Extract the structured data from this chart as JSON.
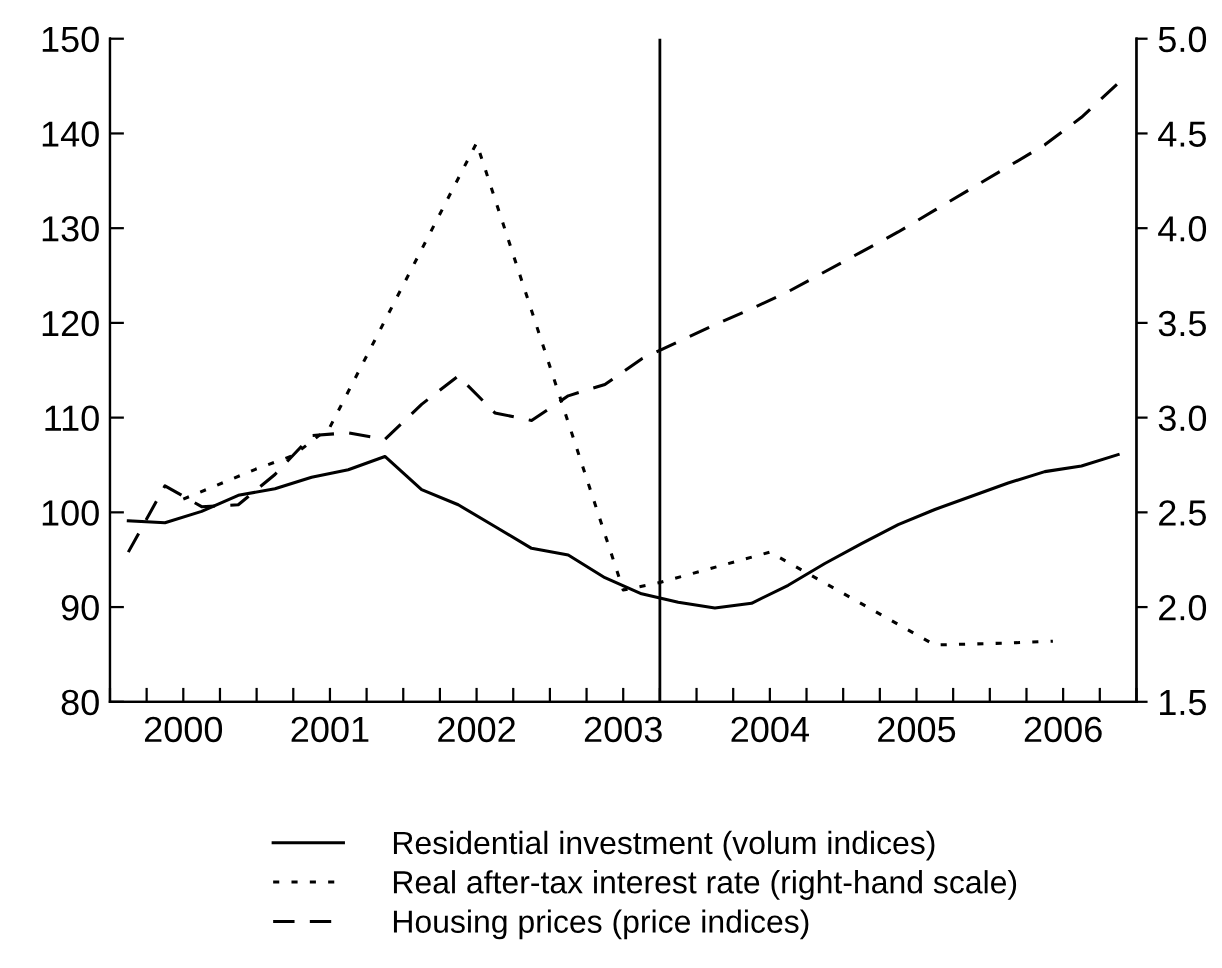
{
  "chart_data": {
    "type": "line",
    "xlim": [
      2000,
      2007
    ],
    "xticks": [
      {
        "value": 2000,
        "label": null
      },
      {
        "value": 2000.25,
        "label": null
      },
      {
        "value": 2000.5,
        "label": "2000"
      },
      {
        "value": 2000.75,
        "label": null
      },
      {
        "value": 2001,
        "label": null
      },
      {
        "value": 2001.25,
        "label": null
      },
      {
        "value": 2001.5,
        "label": "2001"
      },
      {
        "value": 2001.75,
        "label": null
      },
      {
        "value": 2002,
        "label": null
      },
      {
        "value": 2002.25,
        "label": null
      },
      {
        "value": 2002.5,
        "label": "2002"
      },
      {
        "value": 2002.75,
        "label": null
      },
      {
        "value": 2003,
        "label": null
      },
      {
        "value": 2003.25,
        "label": null
      },
      {
        "value": 2003.5,
        "label": "2003"
      },
      {
        "value": 2003.75,
        "label": null
      },
      {
        "value": 2004,
        "label": null
      },
      {
        "value": 2004.25,
        "label": null
      },
      {
        "value": 2004.5,
        "label": "2004"
      },
      {
        "value": 2004.75,
        "label": null
      },
      {
        "value": 2005,
        "label": null
      },
      {
        "value": 2005.25,
        "label": null
      },
      {
        "value": 2005.5,
        "label": "2005"
      },
      {
        "value": 2005.75,
        "label": null
      },
      {
        "value": 2006,
        "label": null
      },
      {
        "value": 2006.25,
        "label": null
      },
      {
        "value": 2006.5,
        "label": "2006"
      },
      {
        "value": 2006.75,
        "label": null
      },
      {
        "value": 2007,
        "label": null
      }
    ],
    "ylim": [
      80,
      150
    ],
    "yticks": [
      80,
      90,
      100,
      110,
      120,
      130,
      140,
      150
    ],
    "y2lim": [
      1.5,
      5.0
    ],
    "y2ticks": [
      1.5,
      {
        "value": 2,
        "label": "2.0"
      },
      2.5,
      {
        "value": 3,
        "label": "3.0"
      },
      3.5,
      {
        "value": 4,
        "label": "4.0"
      },
      4.5,
      {
        "value": 5,
        "label": "5.0"
      }
    ],
    "grid": false,
    "legend": "bottom",
    "marker": "none",
    "ref_lines": [
      {
        "axis": "x",
        "value": 2003.75,
        "color": "#000000",
        "line_style": "solid"
      }
    ],
    "series": [
      {
        "name": "Residential investment (volum indices)",
        "color": "#000000",
        "line_style": "solid",
        "x": [
          2000.125,
          2000.375,
          2000.625,
          2000.875,
          2001.125,
          2001.375,
          2001.625,
          2001.875,
          2002.125,
          2002.375,
          2002.625,
          2002.875,
          2003.125,
          2003.375,
          2003.625,
          2003.875,
          2004.125,
          2004.375,
          2004.625,
          2004.875,
          2005.125,
          2005.375,
          2005.625,
          2005.875,
          2006.125,
          2006.375,
          2006.625,
          2006.875
        ],
        "values": [
          99.1,
          98.9,
          100.1,
          101.8,
          102.5,
          103.7,
          104.5,
          105.9,
          102.4,
          100.8,
          98.5,
          96.2,
          95.5,
          93.1,
          91.4,
          90.5,
          89.9,
          90.4,
          92.3,
          94.6,
          96.7,
          98.7,
          100.3,
          101.7,
          103.1,
          104.3,
          104.9,
          106.1
        ]
      },
      {
        "name": "Real after-tax interest rate (right-hand scale)",
        "color": "#000000",
        "line_style": "dotted",
        "axis": "y2",
        "x": [
          2000.5,
          2001.0,
          2001.25,
          2001.5,
          2002.5,
          2003.5,
          2003.75,
          2004.5,
          2005.625,
          2006.125,
          2006.43
        ],
        "values": [
          2.57,
          2.73,
          2.8,
          2.95,
          4.45,
          2.09,
          2.13,
          2.29,
          1.8,
          1.81,
          1.82
        ]
      },
      {
        "name": "Housing prices (price indices)",
        "color": "#000000",
        "line_style": "dashed",
        "x": [
          2000.125,
          2000.375,
          2000.625,
          2000.875,
          2001.125,
          2001.375,
          2001.625,
          2001.875,
          2002.125,
          2002.375,
          2002.625,
          2002.875,
          2003.125,
          2003.375,
          2003.625,
          2003.875,
          2004.125,
          2004.375,
          2004.625,
          2004.875,
          2005.125,
          2005.375,
          2005.625,
          2005.875,
          2006.125,
          2006.375,
          2006.625,
          2006.875
        ],
        "values": [
          95.8,
          102.8,
          100.6,
          100.8,
          104.0,
          108.1,
          108.4,
          107.7,
          111.4,
          114.4,
          110.5,
          109.7,
          112.3,
          113.5,
          116.2,
          118.0,
          119.8,
          121.5,
          123.3,
          125.4,
          127.5,
          129.6,
          131.9,
          134.2,
          136.5,
          138.8,
          141.7,
          145.3
        ]
      }
    ]
  }
}
